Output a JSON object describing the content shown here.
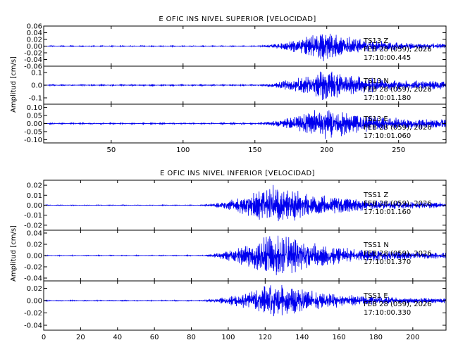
{
  "chart_data": [
    {
      "type": "line",
      "title": "E OFIC INS NIVEL SUPERIOR [VELOCIDAD]",
      "ylabel": "Amplitud [cm/s]",
      "xlim": [
        3,
        283
      ],
      "xticks": [
        50,
        100,
        150,
        200,
        250
      ],
      "line_color": "#0000ee",
      "grid": false,
      "envelope": {
        "onset": 152,
        "peak": 198,
        "end": 283
      },
      "traces": [
        {
          "name": "TS13 Z",
          "ylim": [
            -0.06,
            0.06
          ],
          "yticks": [
            0.06,
            0.04,
            0.02,
            0.0,
            -0.02,
            -0.04,
            -0.06
          ],
          "ytick_labels": [
            "0.06",
            "0.04",
            "0.02",
            "0.00",
            "-0.02",
            "-0.04",
            "-0.06"
          ],
          "annotation": [
            "TS13   Z",
            "FEB 28 (059), 2026",
            "17:10:00.445"
          ],
          "amplitude": {
            "pre": 0.002,
            "peak": 0.05,
            "tail": 0.006
          }
        },
        {
          "name": "TS13 N",
          "ylim": [
            -0.15,
            0.15
          ],
          "yticks": [
            0.1,
            0.0,
            -0.1
          ],
          "ytick_labels": [
            "0.1",
            "0.0",
            "-0.1"
          ],
          "annotation": [
            "TS13   N",
            "FEB 28 (059), 2026",
            "17:10:01.180"
          ],
          "amplitude": {
            "pre": 0.007,
            "peak": 0.13,
            "tail": 0.03
          }
        },
        {
          "name": "TS13 E",
          "ylim": [
            -0.12,
            0.12
          ],
          "yticks": [
            0.1,
            0.05,
            0.0,
            -0.05,
            -0.1
          ],
          "ytick_labels": [
            "0.10",
            "0.05",
            "0.00",
            "-0.05",
            "-0.10"
          ],
          "annotation": [
            "TS13   E",
            "FEB 28 (059), 2026",
            "17:10:01.060"
          ],
          "amplitude": {
            "pre": 0.006,
            "peak": 0.11,
            "tail": 0.025
          }
        }
      ]
    },
    {
      "type": "line",
      "title": "E OFIC INS NIVEL INFERIOR [VELOCIDAD]",
      "ylabel": "Amplitud [cm/s]",
      "xlim": [
        0,
        218
      ],
      "xticks": [
        0,
        20,
        40,
        60,
        80,
        100,
        120,
        140,
        160,
        180,
        200
      ],
      "line_color": "#0000ee",
      "grid": false,
      "envelope": {
        "onset": 85,
        "peak": 125,
        "end": 218
      },
      "traces": [
        {
          "name": "TSS1 Z",
          "ylim": [
            -0.025,
            0.025
          ],
          "yticks": [
            0.02,
            0.01,
            0.0,
            -0.01,
            -0.02
          ],
          "ytick_labels": [
            "0.02",
            "0.01",
            "0.00",
            "-0.01",
            "-0.02"
          ],
          "annotation": [
            "TSS1   Z",
            "FEB 28 (059), 2026",
            "17:10:01.160"
          ],
          "amplitude": {
            "pre": 0.0005,
            "peak": 0.022,
            "tail": 0.002
          }
        },
        {
          "name": "TSS1 N",
          "ylim": [
            -0.045,
            0.045
          ],
          "yticks": [
            0.04,
            0.02,
            0.0,
            -0.02,
            -0.04
          ],
          "ytick_labels": [
            "0.04",
            "0.02",
            "0.00",
            "-0.02",
            "-0.04"
          ],
          "annotation": [
            "TSS1   N",
            "FEB 28 (059), 2026",
            "17:10:01.370"
          ],
          "amplitude": {
            "pre": 0.001,
            "peak": 0.042,
            "tail": 0.004
          }
        },
        {
          "name": "TSS1 E",
          "ylim": [
            -0.048,
            0.032
          ],
          "yticks": [
            0.02,
            0.0,
            -0.02,
            -0.04
          ],
          "ytick_labels": [
            "0.02",
            "0.00",
            "-0.02",
            "-0.04"
          ],
          "annotation": [
            "TSS1   E",
            "FEB 28 (059), 2026",
            "17:10:00.330"
          ],
          "amplitude": {
            "pre": 0.001,
            "peak": 0.03,
            "tail": 0.003
          }
        }
      ]
    }
  ]
}
